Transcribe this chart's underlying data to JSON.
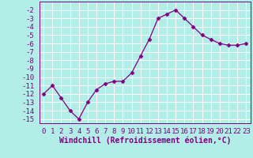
{
  "x": [
    0,
    1,
    2,
    3,
    4,
    5,
    6,
    7,
    8,
    9,
    10,
    11,
    12,
    13,
    14,
    15,
    16,
    17,
    18,
    19,
    20,
    21,
    22,
    23
  ],
  "y": [
    -12,
    -11,
    -12.5,
    -14,
    -15,
    -13,
    -11.5,
    -10.8,
    -10.5,
    -10.5,
    -9.5,
    -7.5,
    -5.5,
    -3.0,
    -2.5,
    -2.0,
    -3.0,
    -4.0,
    -5.0,
    -5.5,
    -6.0,
    -6.2,
    -6.2,
    -6.0
  ],
  "line_color": "#800080",
  "marker": "D",
  "marker_size": 2.5,
  "bg_color": "#b2ede8",
  "grid_color": "#ffffff",
  "xlabel": "Windchill (Refroidissement éolien,°C)",
  "xlabel_fontsize": 7,
  "tick_fontsize": 6.5,
  "ylim": [
    -15.5,
    -1.0
  ],
  "xlim": [
    -0.5,
    23.5
  ],
  "yticks": [
    -2,
    -3,
    -4,
    -5,
    -6,
    -7,
    -8,
    -9,
    -10,
    -11,
    -12,
    -13,
    -14,
    -15
  ],
  "xticks": [
    0,
    1,
    2,
    3,
    4,
    5,
    6,
    7,
    8,
    9,
    10,
    11,
    12,
    13,
    14,
    15,
    16,
    17,
    18,
    19,
    20,
    21,
    22,
    23
  ]
}
